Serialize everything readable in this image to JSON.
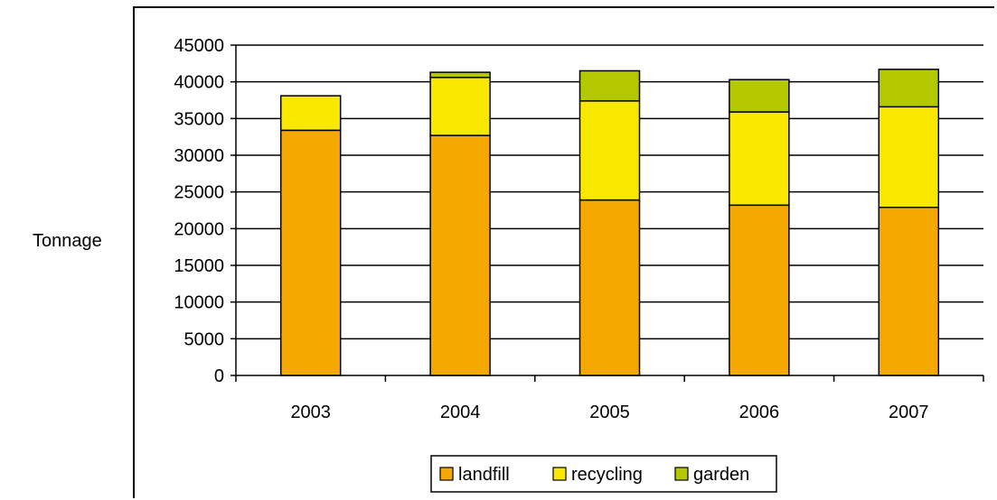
{
  "chart_data": {
    "type": "bar",
    "stacked": true,
    "title": "",
    "xlabel": "",
    "ylabel": "Tonnage",
    "categories": [
      "2003",
      "2004",
      "2005",
      "2006",
      "2007"
    ],
    "series": [
      {
        "name": "landfill",
        "color": "#F5A800",
        "values": [
          33400,
          32700,
          23900,
          23200,
          22900
        ]
      },
      {
        "name": "recycling",
        "color": "#F8E800",
        "values": [
          4700,
          7900,
          13500,
          12700,
          13700
        ]
      },
      {
        "name": "garden",
        "color": "#B4C800",
        "values": [
          0,
          700,
          4100,
          4400,
          5100
        ]
      }
    ],
    "ylim": [
      0,
      45000
    ],
    "yticks": [
      "0",
      "5000",
      "10000",
      "15000",
      "20000",
      "25000",
      "30000",
      "35000",
      "40000",
      "45000"
    ],
    "grid": true,
    "legend_position": "bottom"
  }
}
